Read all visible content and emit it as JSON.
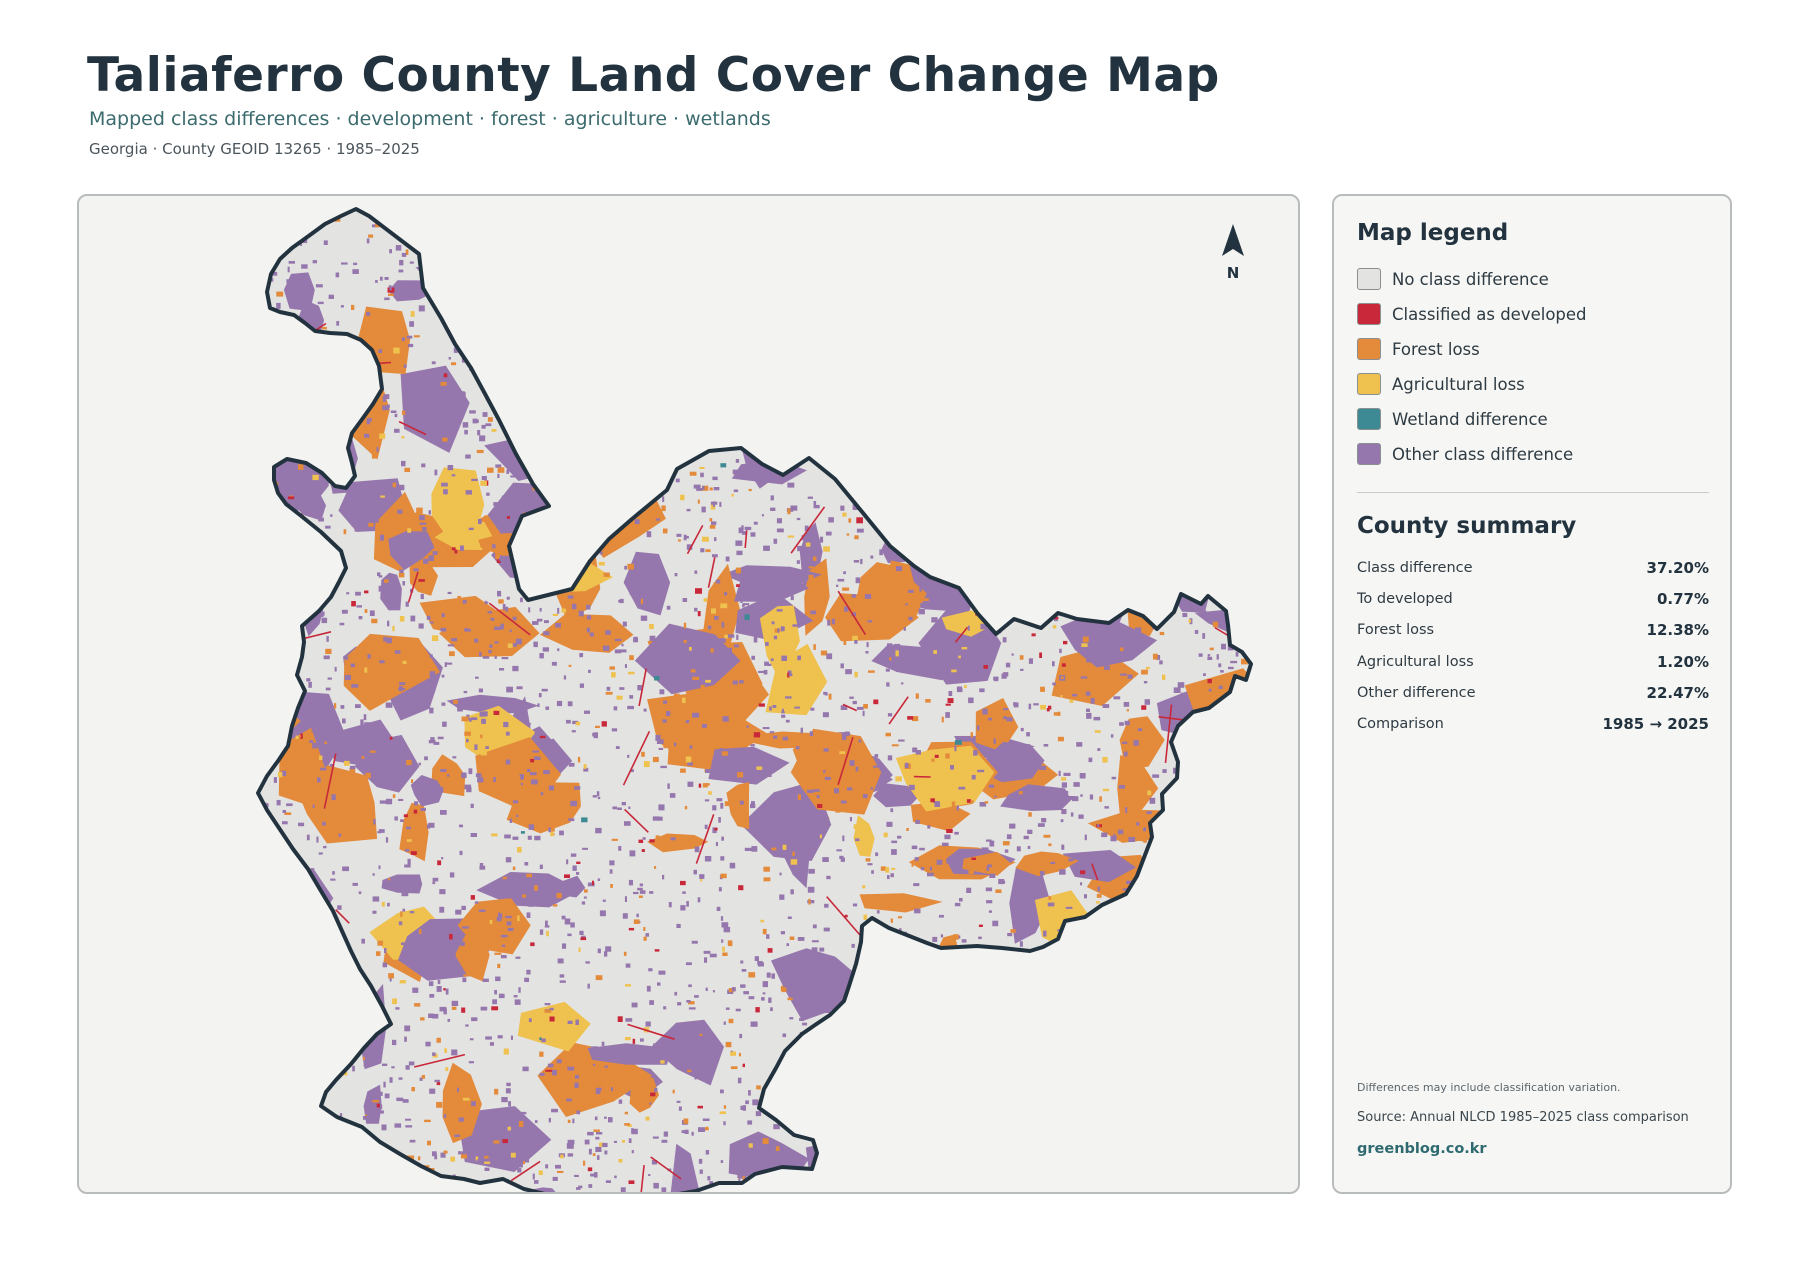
{
  "header": {
    "title": "Taliaferro County Land Cover Change Map",
    "subtitle": "Mapped class differences · development · forest · agriculture · wetlands",
    "meta": "Georgia · County GEOID 13265 · 1985–2025"
  },
  "map": {
    "north_label": "N",
    "north_icon": "north-arrow-icon",
    "boundary_color": "#22333f",
    "background_color": "#f3f3f1"
  },
  "legend": {
    "title": "Map legend",
    "items": [
      {
        "label": "No class difference",
        "color": "#e3e3e1"
      },
      {
        "label": "Classified as developed",
        "color": "#c8283a"
      },
      {
        "label": "Forest loss",
        "color": "#e38a3b"
      },
      {
        "label": "Agricultural loss",
        "color": "#efc24f"
      },
      {
        "label": "Wetland difference",
        "color": "#3e8a94"
      },
      {
        "label": "Other class difference",
        "color": "#9677ad"
      }
    ]
  },
  "summary": {
    "title": "County summary",
    "rows": [
      {
        "label": "Class difference",
        "value": "37.20%"
      },
      {
        "label": "To developed",
        "value": "0.77%"
      },
      {
        "label": "Forest loss",
        "value": "12.38%"
      },
      {
        "label": "Agricultural loss",
        "value": "1.20%"
      },
      {
        "label": "Other difference",
        "value": "22.47%"
      },
      {
        "label": "Comparison",
        "value": "1985 → 2025"
      }
    ]
  },
  "footer": {
    "note": "Differences may include classification variation.",
    "source": "Source: Annual NLCD 1985–2025 class comparison",
    "brand": "greenblog.co.kr"
  }
}
